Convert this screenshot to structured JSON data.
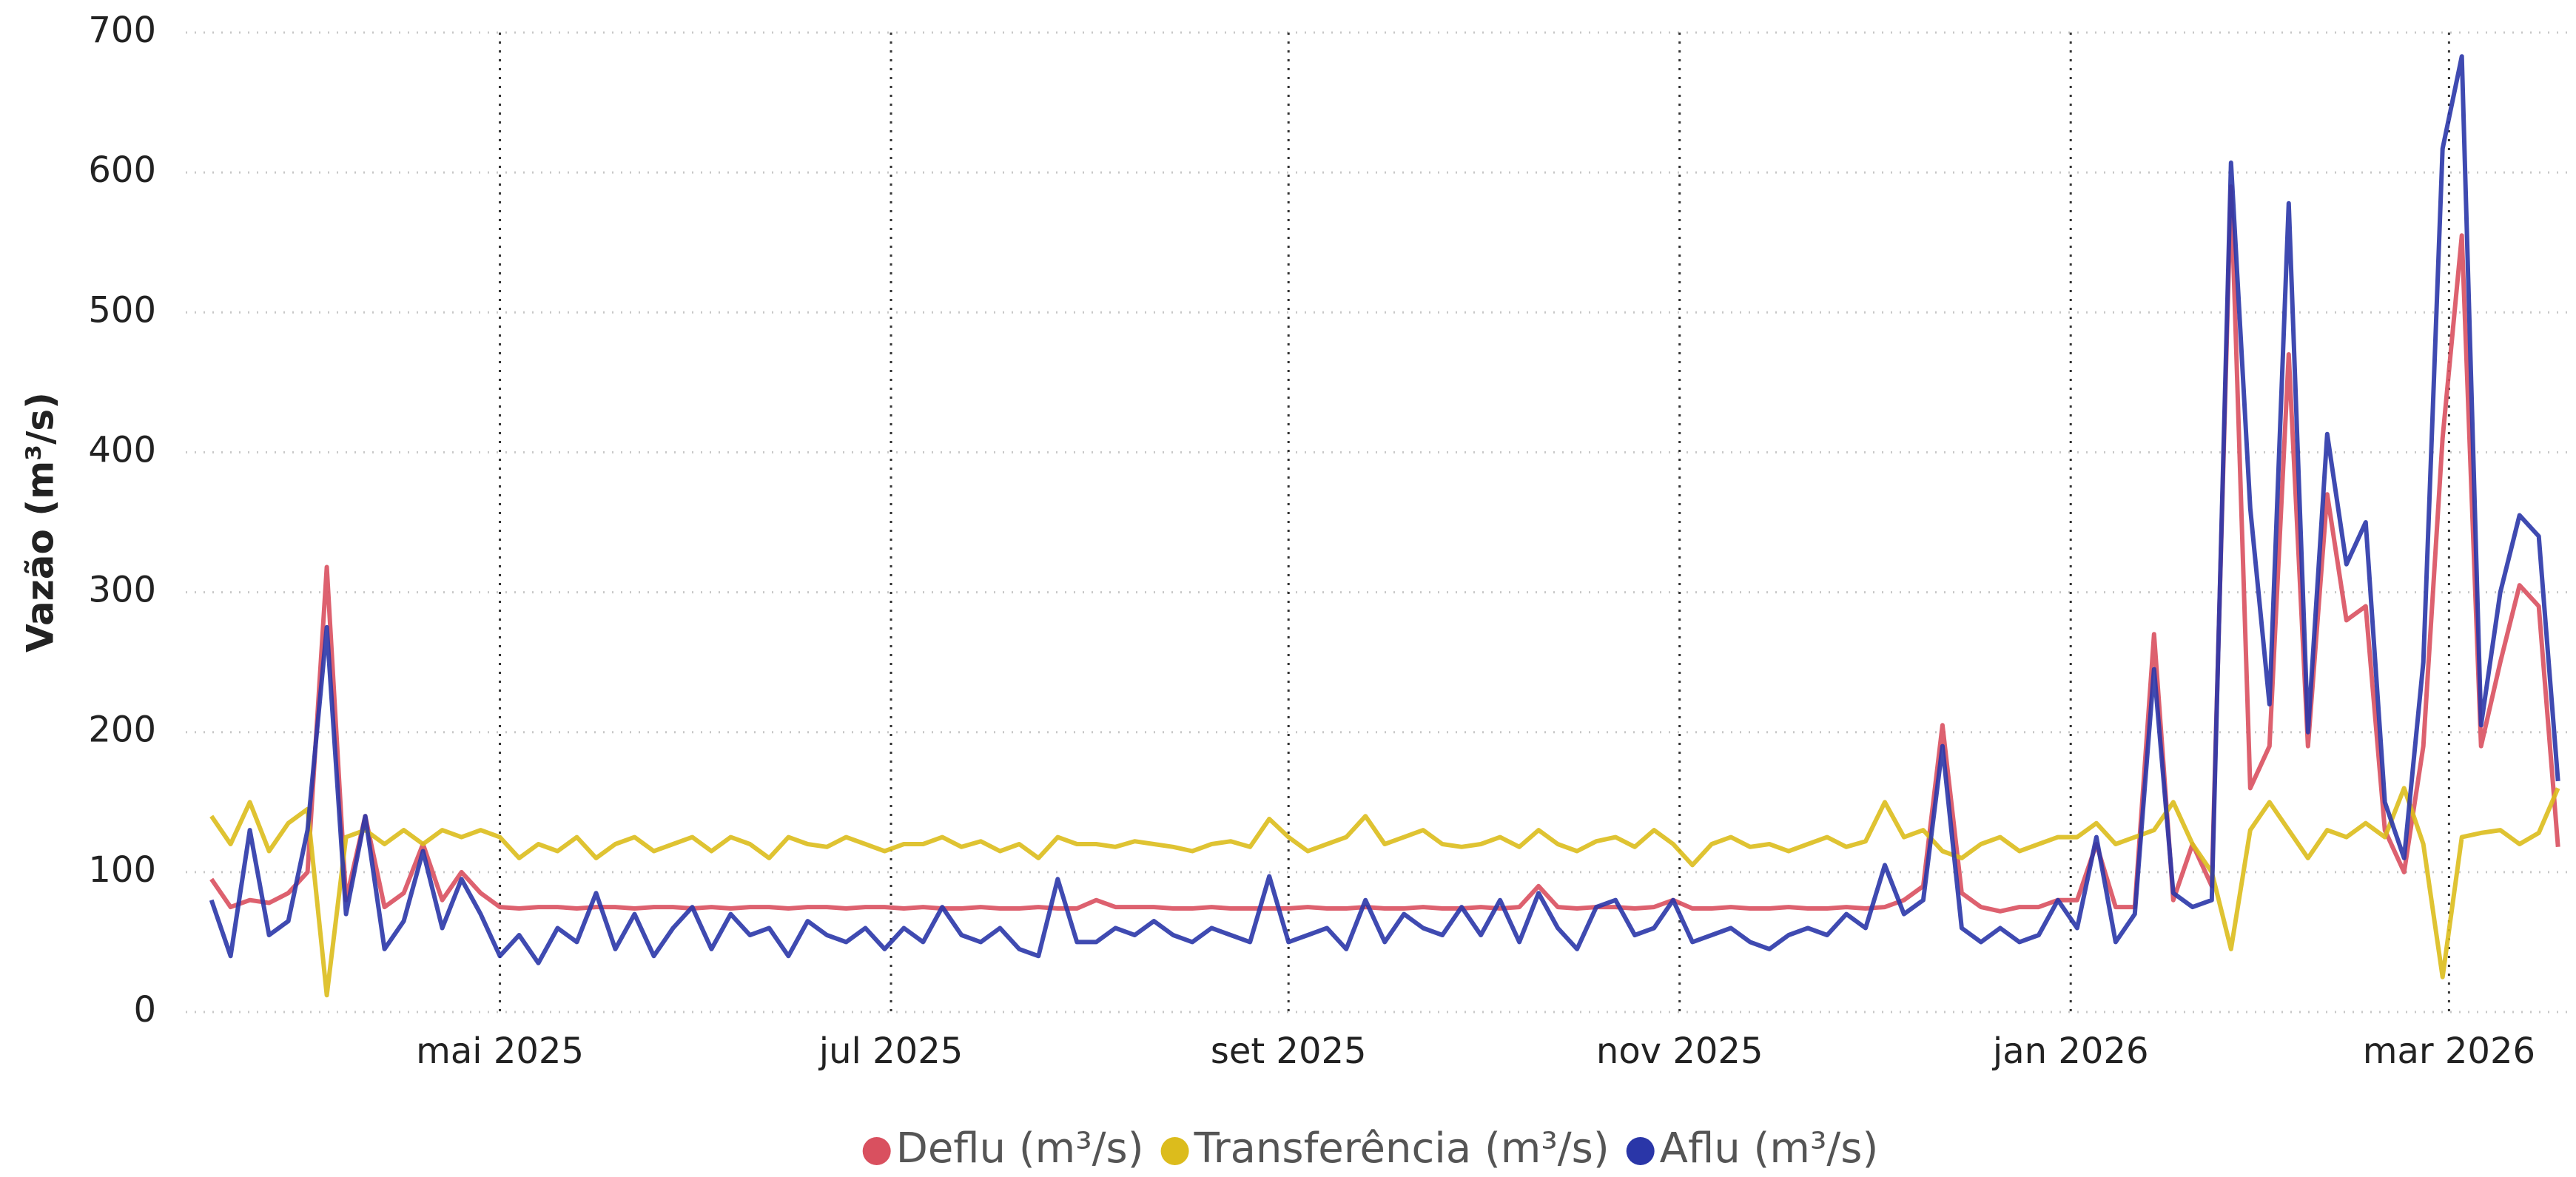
{
  "chart_data": {
    "type": "line",
    "y_label": "Vazão (m³/s)",
    "x": [
      "2025-03-17",
      "2025-03-20",
      "2025-03-23",
      "2025-03-26",
      "2025-03-29",
      "2025-04-01",
      "2025-04-04",
      "2025-04-07",
      "2025-04-10",
      "2025-04-13",
      "2025-04-16",
      "2025-04-19",
      "2025-04-22",
      "2025-04-25",
      "2025-04-28",
      "2025-05-01",
      "2025-05-04",
      "2025-05-07",
      "2025-05-10",
      "2025-05-13",
      "2025-05-16",
      "2025-05-19",
      "2025-05-22",
      "2025-05-25",
      "2025-05-28",
      "2025-05-31",
      "2025-06-03",
      "2025-06-06",
      "2025-06-09",
      "2025-06-12",
      "2025-06-15",
      "2025-06-18",
      "2025-06-21",
      "2025-06-24",
      "2025-06-27",
      "2025-06-30",
      "2025-07-03",
      "2025-07-06",
      "2025-07-09",
      "2025-07-12",
      "2025-07-15",
      "2025-07-18",
      "2025-07-21",
      "2025-07-24",
      "2025-07-27",
      "2025-07-30",
      "2025-08-02",
      "2025-08-05",
      "2025-08-08",
      "2025-08-11",
      "2025-08-14",
      "2025-08-17",
      "2025-08-20",
      "2025-08-23",
      "2025-08-26",
      "2025-08-29",
      "2025-09-01",
      "2025-09-04",
      "2025-09-07",
      "2025-09-10",
      "2025-09-13",
      "2025-09-16",
      "2025-09-19",
      "2025-09-22",
      "2025-09-25",
      "2025-09-28",
      "2025-10-01",
      "2025-10-04",
      "2025-10-07",
      "2025-10-10",
      "2025-10-13",
      "2025-10-16",
      "2025-10-19",
      "2025-10-22",
      "2025-10-25",
      "2025-10-28",
      "2025-10-31",
      "2025-11-03",
      "2025-11-06",
      "2025-11-09",
      "2025-11-12",
      "2025-11-15",
      "2025-11-18",
      "2025-11-21",
      "2025-11-24",
      "2025-11-27",
      "2025-11-30",
      "2025-12-03",
      "2025-12-06",
      "2025-12-09",
      "2025-12-12",
      "2025-12-15",
      "2025-12-18",
      "2025-12-21",
      "2025-12-24",
      "2025-12-27",
      "2025-12-30",
      "2026-01-02",
      "2026-01-05",
      "2026-01-08",
      "2026-01-11",
      "2026-01-14",
      "2026-01-17",
      "2026-01-20",
      "2026-01-23",
      "2026-01-26",
      "2026-01-29",
      "2026-02-01",
      "2026-02-04",
      "2026-02-07",
      "2026-02-10",
      "2026-02-13",
      "2026-02-16",
      "2026-02-19",
      "2026-02-22",
      "2026-02-25",
      "2026-02-28",
      "2026-03-03",
      "2026-03-06",
      "2026-03-09",
      "2026-03-12",
      "2026-03-15",
      "2026-03-18"
    ],
    "series": [
      {
        "name": "Deflu (m³/s)",
        "color": "#d9505f",
        "values": [
          95,
          75,
          80,
          78,
          85,
          100,
          318,
          80,
          140,
          75,
          85,
          120,
          80,
          100,
          85,
          75,
          74,
          75,
          75,
          74,
          75,
          75,
          74,
          75,
          75,
          74,
          75,
          74,
          75,
          75,
          74,
          75,
          75,
          74,
          75,
          75,
          74,
          75,
          74,
          74,
          75,
          74,
          74,
          75,
          74,
          74,
          80,
          75,
          75,
          75,
          74,
          74,
          75,
          74,
          74,
          74,
          74,
          75,
          74,
          74,
          75,
          74,
          74,
          75,
          74,
          74,
          75,
          74,
          75,
          90,
          75,
          74,
          75,
          75,
          74,
          75,
          80,
          74,
          74,
          75,
          74,
          74,
          75,
          74,
          74,
          75,
          74,
          75,
          80,
          90,
          205,
          85,
          75,
          72,
          75,
          75,
          80,
          80,
          120,
          75,
          75,
          270,
          80,
          120,
          90,
          590,
          160,
          190,
          470,
          190,
          370,
          280,
          290,
          130,
          100,
          190,
          410,
          555,
          190,
          250,
          305,
          290,
          118
        ]
      },
      {
        "name": "Transferência (m³/s)",
        "color": "#dcbc1c",
        "values": [
          140,
          120,
          150,
          115,
          135,
          145,
          12,
          125,
          130,
          120,
          130,
          120,
          130,
          125,
          130,
          125,
          110,
          120,
          115,
          125,
          110,
          120,
          125,
          115,
          120,
          125,
          115,
          125,
          120,
          110,
          125,
          120,
          118,
          125,
          120,
          115,
          120,
          120,
          125,
          118,
          122,
          115,
          120,
          110,
          125,
          120,
          120,
          118,
          122,
          120,
          118,
          115,
          120,
          122,
          118,
          138,
          125,
          115,
          120,
          125,
          140,
          120,
          125,
          130,
          120,
          118,
          120,
          125,
          118,
          130,
          120,
          115,
          122,
          125,
          118,
          130,
          120,
          105,
          120,
          125,
          118,
          120,
          115,
          120,
          125,
          118,
          122,
          150,
          125,
          130,
          115,
          110,
          120,
          125,
          115,
          120,
          125,
          125,
          135,
          120,
          125,
          130,
          150,
          120,
          100,
          45,
          130,
          150,
          130,
          110,
          130,
          125,
          135,
          125,
          160,
          120,
          25,
          125,
          128,
          130,
          120,
          128,
          160
        ]
      },
      {
        "name": "Aflu (m³/s)",
        "color": "#2a36a8",
        "values": [
          80,
          40,
          130,
          55,
          65,
          130,
          275,
          70,
          140,
          45,
          65,
          115,
          60,
          95,
          70,
          40,
          55,
          35,
          60,
          50,
          85,
          45,
          70,
          40,
          60,
          75,
          45,
          70,
          55,
          60,
          40,
          65,
          55,
          50,
          60,
          45,
          60,
          50,
          75,
          55,
          50,
          60,
          45,
          40,
          95,
          50,
          50,
          60,
          55,
          65,
          55,
          50,
          60,
          55,
          50,
          97,
          50,
          55,
          60,
          45,
          80,
          50,
          70,
          60,
          55,
          75,
          55,
          80,
          50,
          85,
          60,
          45,
          75,
          80,
          55,
          60,
          80,
          50,
          55,
          60,
          50,
          45,
          55,
          60,
          55,
          70,
          60,
          105,
          70,
          80,
          190,
          60,
          50,
          60,
          50,
          55,
          80,
          60,
          125,
          50,
          70,
          245,
          85,
          75,
          80,
          607,
          360,
          220,
          578,
          200,
          413,
          320,
          350,
          150,
          110,
          250,
          617,
          683,
          205,
          300,
          355,
          340,
          165
        ]
      }
    ],
    "xlim": [
      "2025-03-13",
      "2026-03-20"
    ],
    "xticks": [
      {
        "value": "2025-05-01",
        "label": "mai 2025"
      },
      {
        "value": "2025-07-01",
        "label": "jul 2025"
      },
      {
        "value": "2025-09-01",
        "label": "set 2025"
      },
      {
        "value": "2025-11-01",
        "label": "nov 2025"
      },
      {
        "value": "2026-01-01",
        "label": "jan 2026"
      },
      {
        "value": "2026-03-01",
        "label": "mar 2026"
      }
    ],
    "ylim": [
      0,
      700
    ],
    "yticks": [
      0,
      100,
      200,
      300,
      400,
      500,
      600,
      700
    ],
    "grid": true,
    "legend": "bottom"
  }
}
